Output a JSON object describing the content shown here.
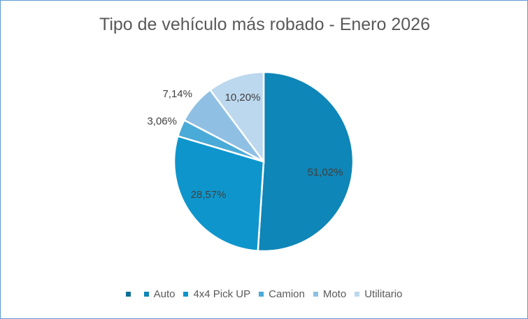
{
  "chart_data": {
    "type": "pie",
    "title": "Tipo de vehículo más robado - Enero 2026",
    "categories": [
      "Auto",
      "4x4 Pick UP",
      "Camion",
      "Moto",
      "Utilitario"
    ],
    "values": [
      51.02,
      28.57,
      3.06,
      7.14,
      10.2
    ],
    "data_labels": [
      "51,02%",
      "28,57%",
      "3,06%",
      "7,14%",
      "10,20%"
    ],
    "colors": [
      "#0e86b8",
      "#0e96cc",
      "#4aaad8",
      "#8fc0e4",
      "#bcd8ee"
    ],
    "legend": {
      "position": "bottom",
      "entries": [
        {
          "label": "",
          "color": "#0e6e96"
        },
        {
          "label": "Auto",
          "color": "#0e86b8"
        },
        {
          "label": "4x4 Pick UP",
          "color": "#0e96cc"
        },
        {
          "label": "Camion",
          "color": "#4aaad8"
        },
        {
          "label": "Moto",
          "color": "#8fc0e4"
        },
        {
          "label": "Utilitario",
          "color": "#bcd8ee"
        }
      ]
    }
  }
}
